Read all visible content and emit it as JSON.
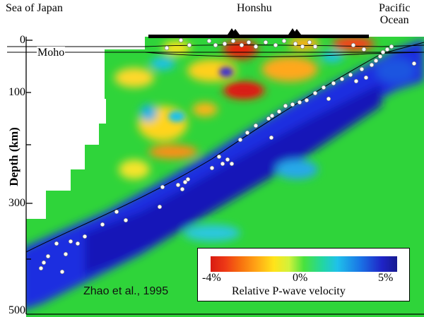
{
  "labels": {
    "left": "Sea of Japan",
    "middle": "Honshu",
    "right_line1": "Pacific",
    "right_line2": "Ocean",
    "moho": "Moho",
    "citation": "Zhao et al., 1995"
  },
  "axis": {
    "y_title": "Depth (km)",
    "y_ticks": [
      "0",
      "100",
      "300",
      "500"
    ]
  },
  "colorbar": {
    "title": "Relative P-wave velocity",
    "min_label": "-4%",
    "mid_label": "0%",
    "max_label": "5%",
    "colors": [
      "#d81a12",
      "#f7700f",
      "#ffe41a",
      "#48e23d",
      "#1fc1ea",
      "#1f23c6"
    ]
  }
}
